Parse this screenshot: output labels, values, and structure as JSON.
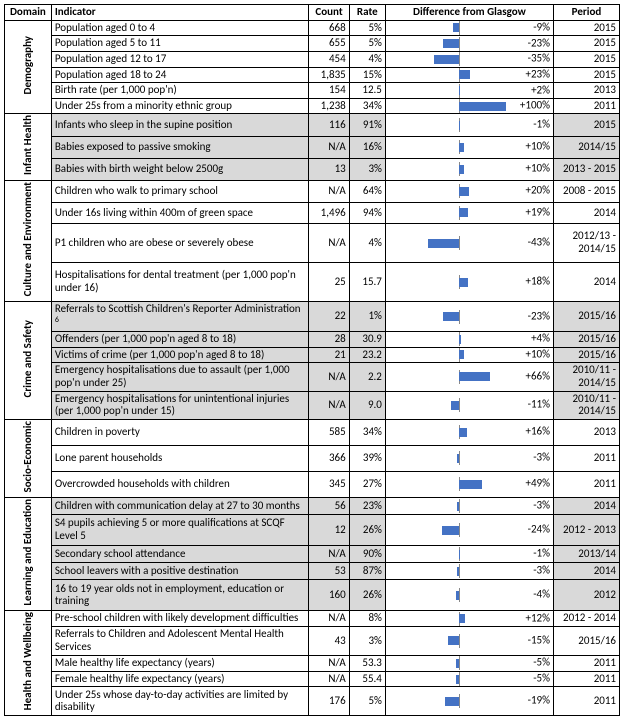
{
  "chart_config": {
    "bar_color": "#4472c4",
    "axis_color": "#888888",
    "min": -100,
    "max": 100,
    "axis_pos_pct": 44,
    "label_area_pct": 28
  },
  "headers": {
    "domain": "Domain",
    "indicator": "Indicator",
    "count": "Count",
    "rate": "Rate",
    "diff": "Difference from Glasgow",
    "period": "Period"
  },
  "domains": [
    {
      "name": "Demography",
      "rows": [
        {
          "indicator": "Population aged 0 to 4",
          "count": "668",
          "rate": "5%",
          "diff": -9,
          "diff_label": "-9%",
          "period": "2015"
        },
        {
          "indicator": "Population aged 5 to 11",
          "count": "655",
          "rate": "5%",
          "diff": -23,
          "diff_label": "-23%",
          "period": "2015"
        },
        {
          "indicator": "Population aged 12 to 17",
          "count": "454",
          "rate": "4%",
          "diff": -35,
          "diff_label": "-35%",
          "period": "2015"
        },
        {
          "indicator": "Population aged 18 to 24",
          "count": "1,835",
          "rate": "15%",
          "diff": 23,
          "diff_label": "+23%",
          "period": "2015"
        },
        {
          "indicator": "Birth rate (per 1,000 pop'n)",
          "count": "154",
          "rate": "12.5",
          "diff": 2,
          "diff_label": "+2%",
          "period": "2013"
        },
        {
          "indicator": "Under 25s from a minority ethnic group",
          "count": "1,238",
          "rate": "34%",
          "diff": 100,
          "diff_label": "+100%",
          "period": "2011"
        }
      ]
    },
    {
      "name": "Infant Health",
      "shaded": true,
      "rows": [
        {
          "indicator": "Infants who sleep in the supine position",
          "count": "116",
          "rate": "91%",
          "diff": -1,
          "diff_label": "-1%",
          "period": "2015"
        },
        {
          "indicator": "Babies exposed to passive smoking",
          "count": "N/A",
          "rate": "16%",
          "diff": 10,
          "diff_label": "+10%",
          "period": "2014/15"
        },
        {
          "indicator": "Babies with birth weight below 2500g",
          "count": "13",
          "rate": "3%",
          "diff": 10,
          "diff_label": "+10%",
          "period": "2013 - 2015"
        }
      ]
    },
    {
      "name": "Culture and Environment",
      "rows": [
        {
          "indicator": "Children who walk to primary school",
          "count": "N/A",
          "rate": "64%",
          "diff": 20,
          "diff_label": "+20%",
          "period": "2008 - 2015"
        },
        {
          "indicator": "Under 16s living within 400m of green space",
          "count": "1,496",
          "rate": "94%",
          "diff": 19,
          "diff_label": "+19%",
          "period": "2014"
        },
        {
          "indicator": "P1 children who are obese or severely obese",
          "count": "N/A",
          "rate": "4%",
          "diff": -43,
          "diff_label": "-43%",
          "period": "2012/13 - 2014/15"
        },
        {
          "indicator": "Hospitalisations for dental treatment (per 1,000 pop'n under 16)",
          "count": "25",
          "rate": "15.7",
          "diff": 18,
          "diff_label": "+18%",
          "period": "2014"
        }
      ]
    },
    {
      "name": "Crime and Safety",
      "shaded": true,
      "rows": [
        {
          "indicator": "Referrals to Scottish Children's Reporter Administration",
          "sup": "6",
          "count": "22",
          "rate": "1%",
          "diff": -23,
          "diff_label": "-23%",
          "period": "2015/16"
        },
        {
          "indicator": "Offenders (per 1,000 pop'n aged 8 to 18)",
          "count": "28",
          "rate": "30.9",
          "diff": 4,
          "diff_label": "+4%",
          "period": "2015/16"
        },
        {
          "indicator": "Victims of crime (per 1,000 pop'n aged 8 to 18)",
          "count": "21",
          "rate": "23.2",
          "diff": 10,
          "diff_label": "+10%",
          "period": "2015/16"
        },
        {
          "indicator": "Emergency hospitalisations due to assault (per 1,000 pop'n under 25)",
          "count": "N/A",
          "rate": "2.2",
          "diff": 66,
          "diff_label": "+66%",
          "period": "2010/11 - 2014/15"
        },
        {
          "indicator": "Emergency hospitalisations for unintentional injuries (per 1,000 pop'n under 15)",
          "count": "N/A",
          "rate": "9.0",
          "diff": -11,
          "diff_label": "-11%",
          "period": "2010/11 - 2014/15"
        }
      ]
    },
    {
      "name": "Socio-Economic",
      "rows": [
        {
          "indicator": "Children in poverty",
          "count": "585",
          "rate": "34%",
          "diff": 16,
          "diff_label": "+16%",
          "period": "2013"
        },
        {
          "indicator": "Lone parent households",
          "count": "366",
          "rate": "39%",
          "diff": -3,
          "diff_label": "-3%",
          "period": "2011"
        },
        {
          "indicator": "Overcrowded households with children",
          "count": "345",
          "rate": "27%",
          "diff": 49,
          "diff_label": "+49%",
          "period": "2011"
        }
      ]
    },
    {
      "name": "Learning and Education",
      "shaded": true,
      "rows": [
        {
          "indicator": "Children with communication delay at 27 to 30 months",
          "count": "56",
          "rate": "23%",
          "diff": -3,
          "diff_label": "-3%",
          "period": "2014"
        },
        {
          "indicator": "S4 pupils achieving 5 or more qualifications at SCQF Level 5",
          "count": "12",
          "rate": "26%",
          "diff": -24,
          "diff_label": "-24%",
          "period": "2012 - 2013"
        },
        {
          "indicator": "Secondary school attendance",
          "count": "N/A",
          "rate": "90%",
          "diff": -1,
          "diff_label": "-1%",
          "period": "2013/14"
        },
        {
          "indicator": "School leavers with a positive destination",
          "count": "53",
          "rate": "87%",
          "diff": -3,
          "diff_label": "-3%",
          "period": "2014"
        },
        {
          "indicator": "16 to 19 year olds not in employment, education or training",
          "count": "160",
          "rate": "26%",
          "diff": -4,
          "diff_label": "-4%",
          "period": "2012"
        }
      ]
    },
    {
      "name": "Health and Wellbeing",
      "rows": [
        {
          "indicator": "Pre-school children with likely development difficulties",
          "count": "N/A",
          "rate": "8%",
          "diff": 12,
          "diff_label": "+12%",
          "period": "2012 - 2014"
        },
        {
          "indicator": "Referrals to Children and Adolescent Mental Health Services",
          "count": "43",
          "rate": "3%",
          "diff": -15,
          "diff_label": "-15%",
          "period": "2015/16"
        },
        {
          "indicator": "Male healthy life expectancy (years)",
          "count": "N/A",
          "rate": "53.3",
          "diff": -5,
          "diff_label": "-5%",
          "period": "2011"
        },
        {
          "indicator": "Female healthy life expectancy (years)",
          "count": "N/A",
          "rate": "55.4",
          "diff": -5,
          "diff_label": "-5%",
          "period": "2011"
        },
        {
          "indicator": "Under 25s whose day-to-day activities are limited by disability",
          "count": "176",
          "rate": "5%",
          "diff": -19,
          "diff_label": "-19%",
          "period": "2011"
        }
      ]
    }
  ]
}
